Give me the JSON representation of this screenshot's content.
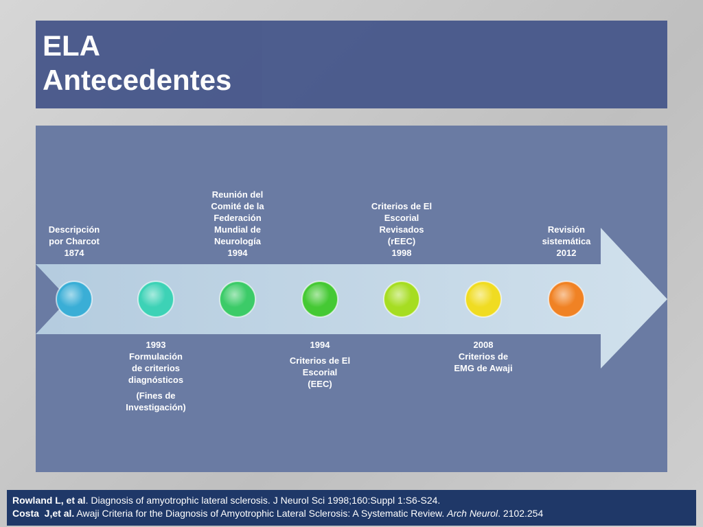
{
  "title": [
    "ELA",
    "Antecedentes"
  ],
  "timeline": {
    "nodes": [
      {
        "color": "#3aaed6",
        "position": "top",
        "blocks": [
          [
            "Descripción",
            "por Charcot",
            "1874"
          ]
        ]
      },
      {
        "color": "#3dd2b6",
        "position": "bottom",
        "blocks": [
          [
            "1993",
            "Formulación",
            "de criterios",
            "diagnósticos"
          ],
          [
            "(Fines de",
            "Investigación)"
          ]
        ]
      },
      {
        "color": "#3ccb68",
        "position": "top",
        "blocks": [
          [
            "Reunión del",
            "Comité de la",
            "Federación",
            "Mundial de",
            "Neurología",
            "1994"
          ]
        ]
      },
      {
        "color": "#45c934",
        "position": "bottom",
        "blocks": [
          [
            "1994"
          ],
          [
            "Criterios de El",
            "Escorial",
            "(EEC)"
          ]
        ]
      },
      {
        "color": "#a6dd22",
        "position": "top",
        "blocks": [
          [
            "Criterios de El",
            "Escorial",
            "Revisados",
            "(rEEC)",
            "1998"
          ]
        ]
      },
      {
        "color": "#f0dc22",
        "position": "bottom",
        "blocks": [
          [
            "2008",
            "Criterios de",
            "EMG de Awaji"
          ]
        ]
      },
      {
        "color": "#f08224",
        "position": "top",
        "blocks": [
          [
            "Revisión",
            "sistemática",
            "2012"
          ]
        ]
      }
    ]
  },
  "references": [
    [
      {
        "text": "Rowland L, et al",
        "style": "bold"
      },
      {
        "text": ". Diagnosis of amyotrophic lateral sclerosis. J Neurol Sci 1998;160:Suppl 1:S6-S24.",
        "style": "normal"
      }
    ],
    [
      {
        "text": "Costa  J,et al.",
        "style": "bold"
      },
      {
        "text": " Awaji Criteria for the Diagnosis of Amyotrophic Lateral Sclerosis: A Systematic Review. ",
        "style": "normal"
      },
      {
        "text": "Arch Neurol",
        "style": "italic"
      },
      {
        "text": ". 2102.254",
        "style": "normal"
      }
    ]
  ]
}
